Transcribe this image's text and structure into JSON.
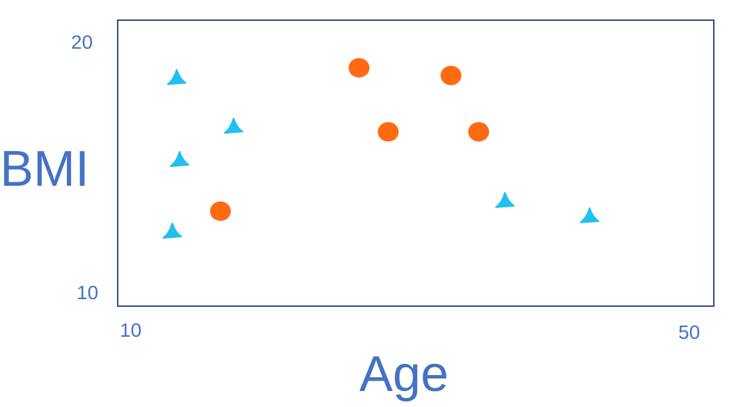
{
  "colors": {
    "axis_text": "#4472C4",
    "frame": "#2F4A80",
    "series_a": "#FF6A13",
    "series_b": "#21C0F0"
  },
  "chart_data": {
    "type": "scatter",
    "title": "",
    "xlabel": "Age",
    "ylabel": "BMI",
    "xlim": [
      10,
      50
    ],
    "ylim": [
      10,
      20
    ],
    "x_ticks": [
      "10",
      "50"
    ],
    "y_ticks": [
      "10",
      "20"
    ],
    "grid": false,
    "legend": "none",
    "series": [
      {
        "marker": "circle",
        "color": "#FF6A13",
        "points": [
          {
            "x": 26.4,
            "y": 18.9
          },
          {
            "x": 32.7,
            "y": 18.6
          },
          {
            "x": 28.4,
            "y": 16.4
          },
          {
            "x": 34.6,
            "y": 16.4
          },
          {
            "x": 16.9,
            "y": 13.3
          }
        ]
      },
      {
        "marker": "triangle",
        "color": "#21C0F0",
        "points": [
          {
            "x": 13.9,
            "y": 18.5
          },
          {
            "x": 17.8,
            "y": 16.6
          },
          {
            "x": 14.1,
            "y": 15.3
          },
          {
            "x": 13.6,
            "y": 12.5
          },
          {
            "x": 36.4,
            "y": 13.7
          },
          {
            "x": 42.2,
            "y": 13.1
          }
        ]
      }
    ]
  }
}
